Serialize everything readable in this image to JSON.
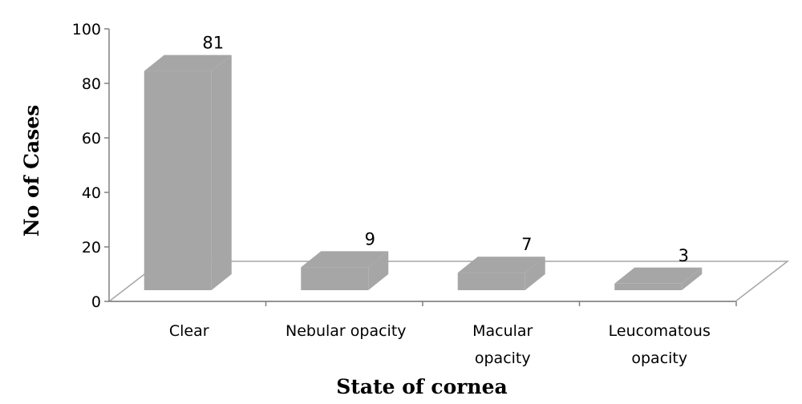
{
  "chart_data": {
    "type": "bar",
    "categories": [
      "Clear",
      "Nebular opacity",
      "Macular opacity",
      "Leucomatous opacity"
    ],
    "category_lines": [
      [
        "Clear"
      ],
      [
        "Nebular opacity"
      ],
      [
        "Macular",
        "opacity"
      ],
      [
        "Leucomatous",
        "opacity"
      ]
    ],
    "values": [
      81,
      9,
      7,
      3
    ],
    "data_labels": [
      "81",
      "9",
      "7",
      "3"
    ],
    "xlabel": "State of cornea",
    "ylabel": "No of Cases",
    "ylim": [
      0,
      100
    ],
    "yticks": [
      "0",
      "20",
      "40",
      "60",
      "80",
      "100"
    ],
    "bar_color": "#a6a6a6",
    "grid": false,
    "style": "3d-column"
  }
}
